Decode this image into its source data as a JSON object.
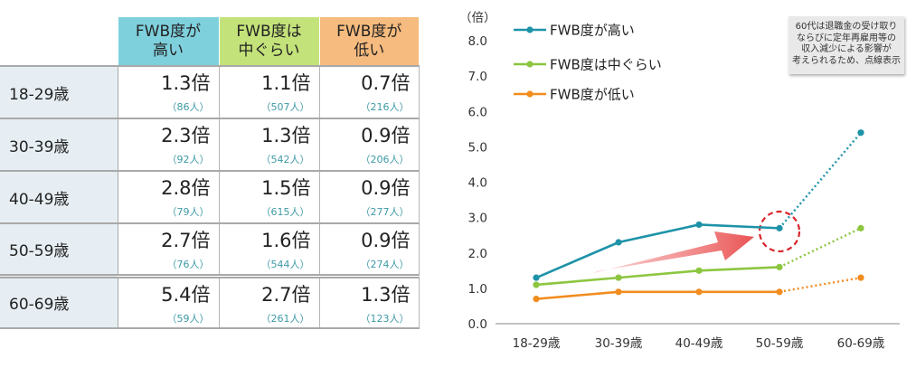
{
  "table": {
    "headers": [
      "FWB度が\n高い",
      "FWB度は\n中ぐらい",
      "FWB度が\n低い"
    ],
    "rows": [
      {
        "label": "18-29歳",
        "cells": [
          [
            "1.3倍",
            "（86人）"
          ],
          [
            "1.1倍",
            "（507人）"
          ],
          [
            "0.7倍",
            "（216人）"
          ]
        ]
      },
      {
        "label": "30-39歳",
        "cells": [
          [
            "2.3倍",
            "（92人）"
          ],
          [
            "1.3倍",
            "（542人）"
          ],
          [
            "0.9倍",
            "（206人）"
          ]
        ]
      },
      {
        "label": "40-49歳",
        "cells": [
          [
            "2.8倍",
            "（79人）"
          ],
          [
            "1.5倍",
            "（615人）"
          ],
          [
            "0.9倍",
            "（277人）"
          ]
        ]
      },
      {
        "label": "50-59歳",
        "cells": [
          [
            "2.7倍",
            "（76人）"
          ],
          [
            "1.6倍",
            "（544人）"
          ],
          [
            "0.9倍",
            "（274人）"
          ]
        ]
      },
      {
        "label": "60-69歳",
        "cells": [
          [
            "5.4倍",
            "（59人）"
          ],
          [
            "2.7倍",
            "（261人）"
          ],
          [
            "1.3倍",
            "（123人）"
          ]
        ]
      }
    ]
  },
  "chart_data": {
    "type": "line",
    "ylabel": "（倍）",
    "ylim": [
      0,
      8
    ],
    "yticks": [
      "0.0",
      "1.0",
      "2.0",
      "3.0",
      "4.0",
      "5.0",
      "6.0",
      "7.0",
      "8.0"
    ],
    "categories": [
      "18-29歳",
      "30-39歳",
      "40-49歳",
      "50-59歳",
      "60-69歳"
    ],
    "series": [
      {
        "name": "FWB度が高い",
        "color": "#1e93a8",
        "values": [
          1.3,
          2.3,
          2.8,
          2.7,
          5.4
        ]
      },
      {
        "name": "FWB度は中ぐらい",
        "color": "#8cc63f",
        "values": [
          1.1,
          1.3,
          1.5,
          1.6,
          2.7
        ]
      },
      {
        "name": "FWB度が低い",
        "color": "#f28c1e",
        "values": [
          0.7,
          0.9,
          0.9,
          0.9,
          1.3
        ]
      }
    ],
    "dotted_from_category": "50-59歳",
    "legend_position": "top-left",
    "grid": false
  },
  "note": {
    "lines": [
      "60代は退職金の受け取り",
      "ならびに定年再雇用等の",
      "収入減少による影響が",
      "考えられるため、点線表示"
    ]
  }
}
